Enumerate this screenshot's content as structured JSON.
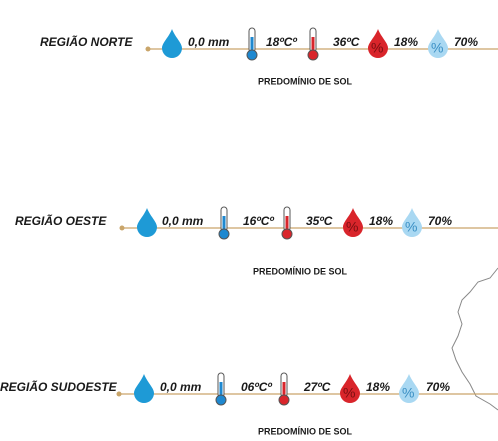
{
  "regions": [
    {
      "name": "REGIÃO NORTE",
      "rain": "0,0 mm",
      "min_temp": "18ºCº",
      "max_temp": "36ºC",
      "min_humidity": "18%",
      "max_humidity": "70%",
      "condition": "PREDOMÍNIO DE SOL"
    },
    {
      "name": "REGIÃO OESTE",
      "rain": "0,0 mm",
      "min_temp": "16ºCº",
      "max_temp": "35ºC",
      "min_humidity": "18%",
      "max_humidity": "70%",
      "condition": "PREDOMÍNIO DE SOL"
    },
    {
      "name": "REGIÃO SUDOESTE",
      "rain": "0,0 mm",
      "min_temp": "06ºCº",
      "max_temp": "27ºC",
      "min_humidity": "18%",
      "max_humidity": "70%",
      "condition": "PREDOMÍNIO DE SOL"
    }
  ]
}
